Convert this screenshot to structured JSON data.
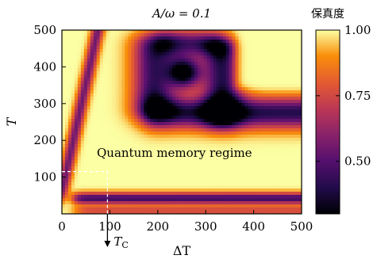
{
  "chart_data": {
    "type": "heatmap",
    "title": "A/ω = 0.1",
    "xlabel": "ΔT",
    "ylabel": "T",
    "xlim": [
      0,
      500
    ],
    "ylim": [
      0,
      500
    ],
    "x_ticks": [
      0,
      100,
      200,
      300,
      400,
      500
    ],
    "y_ticks": [
      100,
      200,
      300,
      400,
      500
    ],
    "colorbar": {
      "title": "保真度",
      "range": [
        0.3,
        1.0
      ],
      "ticks": [
        "1.00",
        "0.75",
        "0.50"
      ],
      "tick_values": [
        1.0,
        0.75,
        0.5
      ],
      "colormap": "inferno"
    },
    "annotations": {
      "region_label": "Quantum memory regime",
      "critical_label": "T",
      "critical_sub": "C",
      "critical_T": 115,
      "critical_DeltaT": 95
    },
    "features": {
      "high_fidelity_band_T": [
        120,
        210
      ],
      "low_fidelity_band_T": [
        225,
        320
      ],
      "minimum_point": {
        "DeltaT": 255,
        "T": 385,
        "fidelity": 0.3
      },
      "low_band_bottom_T": [
        25,
        60
      ]
    }
  }
}
